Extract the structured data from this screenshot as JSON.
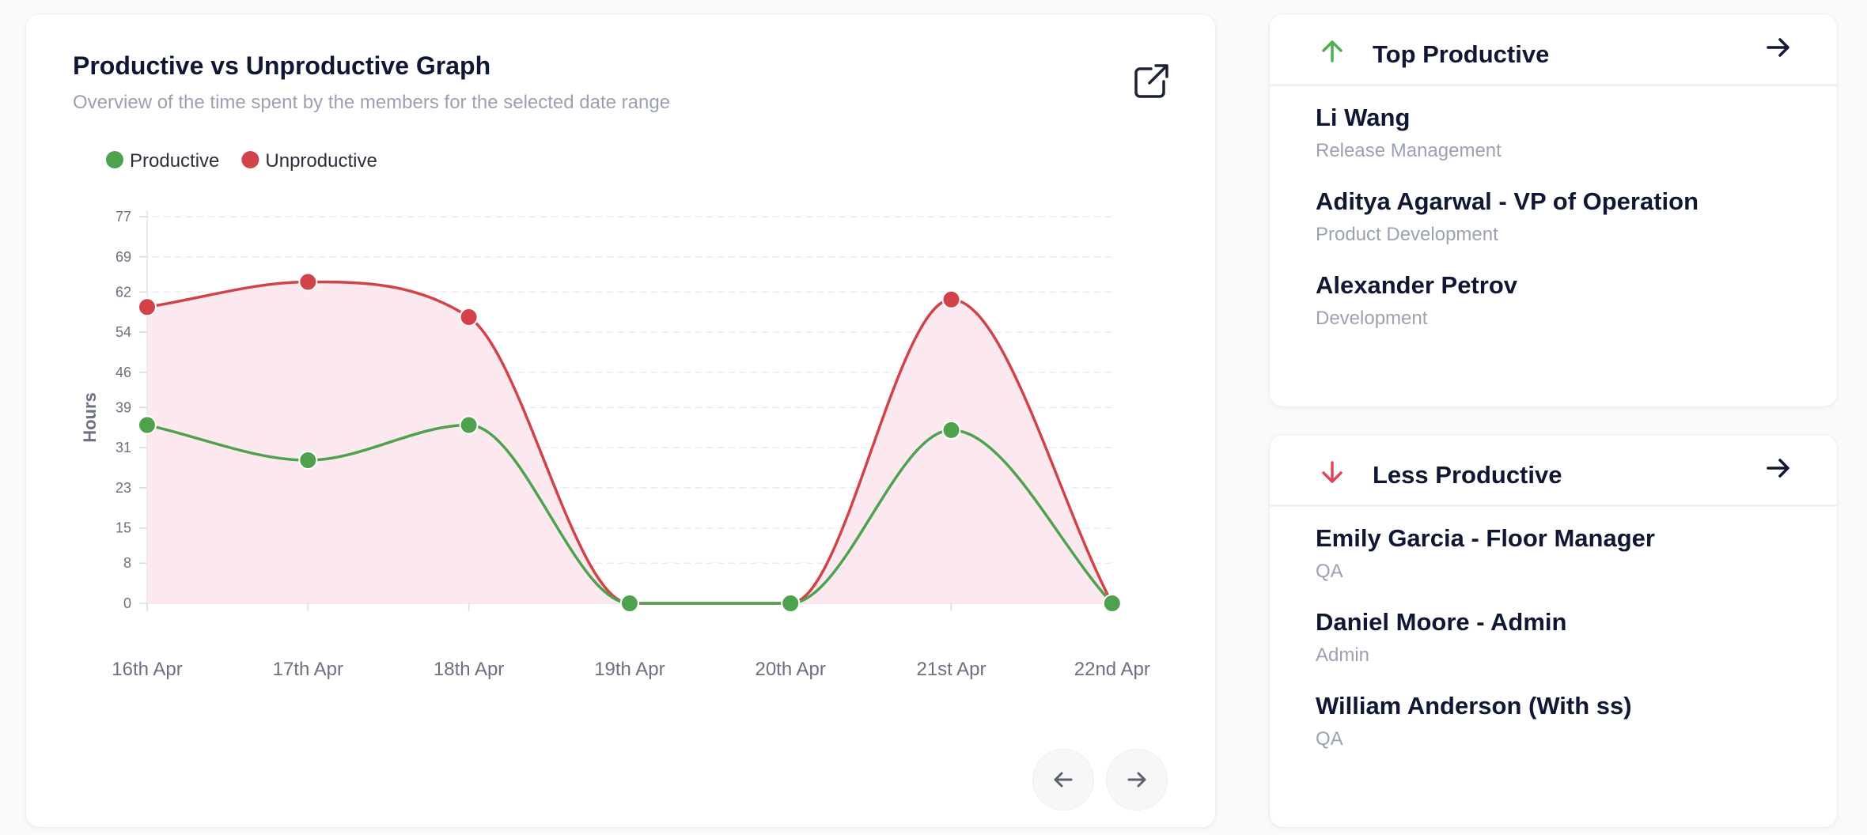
{
  "graph": {
    "title": "Productive vs Unproductive Graph",
    "subtitle": "Overview of the time spent by the members for the selected date range"
  },
  "chart_data": {
    "type": "line",
    "categories": [
      "16th Apr",
      "17th Apr",
      "18th Apr",
      "19th Apr",
      "20th Apr",
      "21st Apr",
      "22nd Apr"
    ],
    "series": [
      {
        "name": "Productive",
        "color": "#4ea24e",
        "values": [
          35.5,
          28.5,
          35.5,
          0,
          0,
          34.5,
          0
        ]
      },
      {
        "name": "Unproductive",
        "color": "#d24249",
        "values": [
          59,
          64,
          57,
          0,
          0,
          60.5,
          0
        ]
      }
    ],
    "ylabel": "Hours",
    "yticks": [
      "0",
      "8",
      "15",
      "23",
      "31",
      "39",
      "46",
      "54",
      "62",
      "69",
      "77"
    ],
    "ylim": [
      0,
      77
    ],
    "fill_color": "#fbe9ef",
    "grid": true,
    "legend": "top-left"
  },
  "top_productive": {
    "title": "Top Productive",
    "people": [
      {
        "name": "Li Wang",
        "dept": "Release Management"
      },
      {
        "name": "Aditya Agarwal - VP of Operation",
        "dept": "Product Development"
      },
      {
        "name": "Alexander Petrov",
        "dept": "Development"
      }
    ]
  },
  "less_productive": {
    "title": "Less Productive",
    "people": [
      {
        "name": "Emily Garcia - Floor Manager",
        "dept": "QA"
      },
      {
        "name": "Daniel Moore - Admin",
        "dept": "Admin"
      },
      {
        "name": "William Anderson (With ss)",
        "dept": "QA"
      }
    ]
  }
}
